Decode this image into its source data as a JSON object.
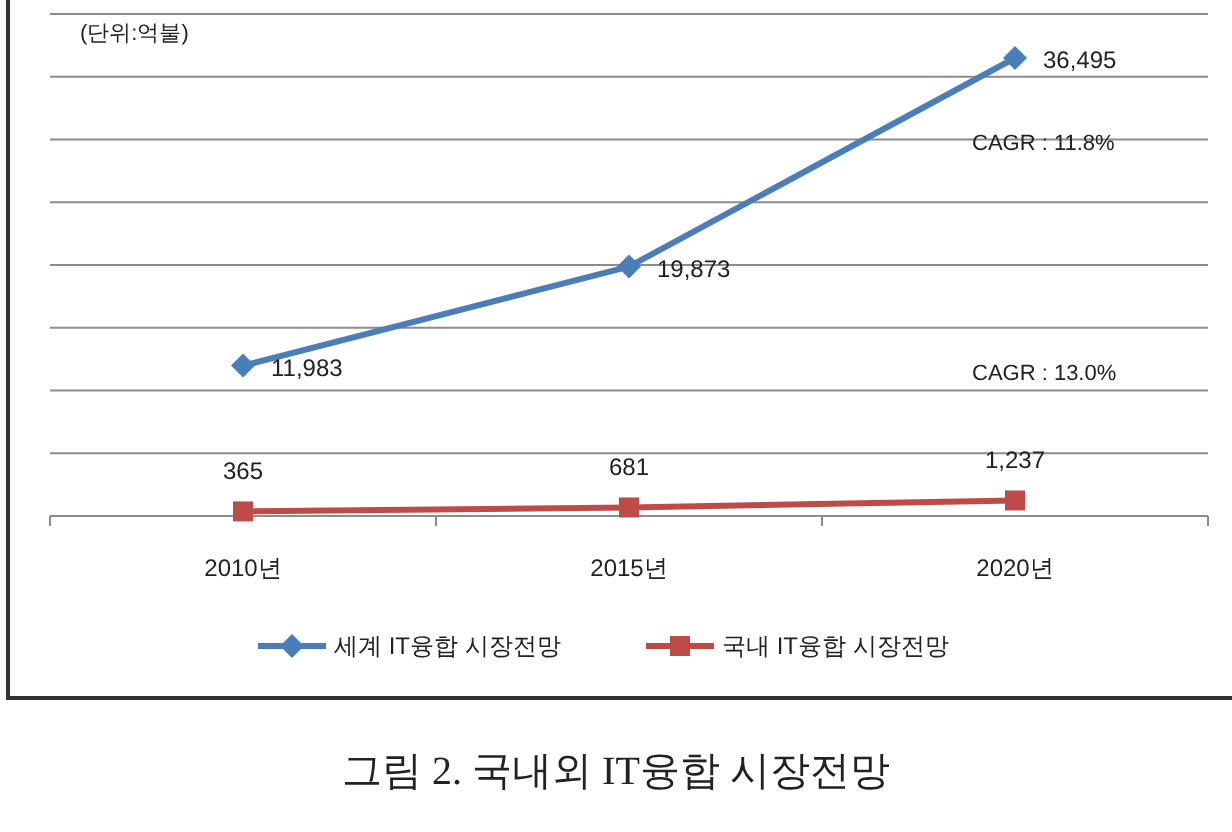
{
  "chart_data": {
    "type": "line",
    "title": "그림 2. 국내외 IT융합 시장전망",
    "annotations": [
      "(단위:억불)",
      "CAGR : 11.8%",
      "CAGR : 13.0%"
    ],
    "categories": [
      "2010년",
      "2015년",
      "2020년"
    ],
    "series": [
      {
        "name": "세계 IT융합 시장전망",
        "color": "#4a7ebb",
        "marker": "diamond",
        "values": [
          11983,
          19873,
          36495
        ],
        "value_labels": [
          "11,983",
          "19,873",
          "36,495"
        ]
      },
      {
        "name": "국내 IT융합 시장전망",
        "color": "#be4b48",
        "marker": "square",
        "values": [
          365,
          681,
          1237
        ],
        "value_labels": [
          "365",
          "681",
          "1,237"
        ]
      }
    ],
    "ylim": [
      0,
      40000
    ],
    "yticks": [
      {
        "value": 0,
        "label": null
      },
      {
        "value": 5000,
        "label": null
      },
      {
        "value": 10000,
        "label": null
      },
      {
        "value": 15000,
        "label": null
      },
      {
        "value": 20000,
        "label": null
      },
      {
        "value": 25000,
        "label": null
      },
      {
        "value": 30000,
        "label": null
      },
      {
        "value": 35000,
        "label": null
      },
      {
        "value": 40000,
        "label": null
      }
    ],
    "grid": "y",
    "legend": "bottom"
  }
}
